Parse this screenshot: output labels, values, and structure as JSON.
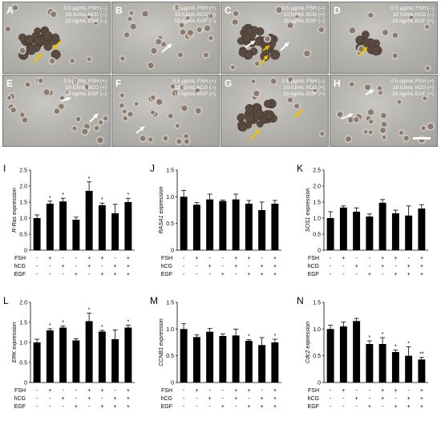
{
  "photo_panels": [
    {
      "letter": "A",
      "conditions": [
        "0.5 µg/mL FSH (–)",
        "10 IU/mL hCG (–)",
        "10 ng/mL EGF (–)"
      ],
      "cluster": "large"
    },
    {
      "letter": "B",
      "conditions": [
        "0.5 µg/mL FSH (+)",
        "10 IU/mL hCG (–)",
        "10 ng/mL EGF (–)"
      ],
      "cluster": "dispersed"
    },
    {
      "letter": "C",
      "conditions": [
        "0.5 µg/mL FSH (–)",
        "10 IU/mL hCG (+)",
        "10 ng/mL EGF (–)"
      ],
      "cluster": "large"
    },
    {
      "letter": "D",
      "conditions": [
        "0.5 µg/mL FSH (–)",
        "10 IU/mL hCG (–)",
        "10 ng/mL EGF (+)"
      ],
      "cluster": "small"
    },
    {
      "letter": "E",
      "conditions": [
        "0.5 µg/mL FSH (+)",
        "10 IU/mL hCG (+)",
        "10 ng/mL EGF (–)"
      ],
      "cluster": "dispersed"
    },
    {
      "letter": "F",
      "conditions": [
        "0.5 µg/mL FSH (+)",
        "10 IU/mL hCG (–)",
        "10 ng/mL EGF (+)"
      ],
      "cluster": "dispersed"
    },
    {
      "letter": "G",
      "conditions": [
        "0.5 µg/mL FSH (–)",
        "10 IU/mL hCG (+)",
        "10 ng/mL EGF (+)"
      ],
      "cluster": "large"
    },
    {
      "letter": "H",
      "conditions": [
        "0.5 µg/mL FSH (+)",
        "10 IU/mL hCG (+)",
        "10 ng/mL EGF (+)"
      ],
      "cluster": "dispersed"
    }
  ],
  "colors": {
    "arrow_yellow": "#f2c200",
    "arrow_white": "#ffffff",
    "bar": "#000000",
    "photo_bg": "#b6b4af",
    "oocyte": "#5a4a40"
  },
  "treatment_labels": [
    "FSH",
    "hCG",
    "EGF"
  ],
  "treatment_matrix": [
    [
      "-",
      "+",
      "-",
      "-",
      "+",
      "+",
      "-",
      "+"
    ],
    [
      "-",
      "-",
      "+",
      "-",
      "+",
      "-",
      "+",
      "+"
    ],
    [
      "-",
      "-",
      "-",
      "+",
      "-",
      "+",
      "+",
      "+"
    ]
  ],
  "chart_data": [
    {
      "letter": "I",
      "type": "bar",
      "ylabel": "R-Ras expression",
      "ylim": [
        0,
        2.5
      ],
      "yticks": [
        "0",
        "0.5",
        "1.0",
        "1.5",
        "2.0",
        "2.5"
      ],
      "values": [
        1.0,
        1.45,
        1.52,
        0.95,
        1.85,
        1.4,
        1.15,
        1.5
      ],
      "errors": [
        0.1,
        0.08,
        0.1,
        0.08,
        0.28,
        0.07,
        0.28,
        0.12
      ],
      "marks": [
        "",
        "*",
        "*",
        "",
        "*",
        "*",
        "",
        "*"
      ]
    },
    {
      "letter": "J",
      "type": "bar",
      "ylabel": "RASA1 expression",
      "ylim": [
        0,
        1.5
      ],
      "yticks": [
        "0",
        "0.5",
        "1.0",
        "1.5"
      ],
      "values": [
        1.0,
        0.85,
        0.95,
        0.92,
        0.95,
        0.87,
        0.75,
        0.87
      ],
      "errors": [
        0.12,
        0.04,
        0.1,
        0.02,
        0.1,
        0.06,
        0.15,
        0.06
      ],
      "marks": [
        "",
        "",
        "",
        "",
        "",
        "",
        "",
        ""
      ]
    },
    {
      "letter": "K",
      "type": "bar",
      "ylabel": "SOS1 expression",
      "ylim": [
        0,
        2.5
      ],
      "yticks": [
        "0",
        "0.5",
        "1.0",
        "1.5",
        "2.0",
        "2.5"
      ],
      "values": [
        1.0,
        1.33,
        1.2,
        1.05,
        1.48,
        1.15,
        1.08,
        1.3
      ],
      "errors": [
        0.2,
        0.05,
        0.12,
        0.08,
        0.1,
        0.1,
        0.3,
        0.12
      ],
      "marks": [
        "",
        "",
        "",
        "",
        "",
        "",
        "",
        ""
      ]
    },
    {
      "letter": "L",
      "type": "bar",
      "ylabel": "ERK expression",
      "ylim": [
        0,
        2.0
      ],
      "yticks": [
        "0",
        "0.5",
        "1.0",
        "1.5",
        "2.0"
      ],
      "values": [
        1.0,
        1.3,
        1.37,
        1.05,
        1.53,
        1.27,
        1.08,
        1.37
      ],
      "errors": [
        0.08,
        0.04,
        0.04,
        0.04,
        0.2,
        0.03,
        0.23,
        0.06
      ],
      "marks": [
        "",
        "*",
        "*",
        "",
        "*",
        "*",
        "",
        "*"
      ]
    },
    {
      "letter": "M",
      "type": "bar",
      "ylabel": "CCNB1 expression",
      "ylim": [
        0,
        1.5
      ],
      "yticks": [
        "0",
        "0.5",
        "1.0",
        "1.5"
      ],
      "values": [
        1.0,
        0.85,
        0.95,
        0.87,
        0.88,
        0.78,
        0.7,
        0.75
      ],
      "errors": [
        0.1,
        0.04,
        0.06,
        0.04,
        0.12,
        0.02,
        0.14,
        0.06
      ],
      "marks": [
        "",
        "",
        "",
        "",
        "",
        "*",
        "",
        "*"
      ]
    },
    {
      "letter": "N",
      "type": "bar",
      "ylabel": "Cdc2 expression",
      "ylim": [
        0,
        1.5
      ],
      "yticks": [
        "0",
        "0.5",
        "1.0",
        "1.5"
      ],
      "values": [
        1.0,
        1.05,
        1.15,
        0.72,
        0.72,
        0.57,
        0.5,
        0.43
      ],
      "errors": [
        0.07,
        0.08,
        0.05,
        0.06,
        0.12,
        0.04,
        0.17,
        0.04
      ],
      "marks": [
        "",
        "",
        "",
        "*",
        "*",
        "*",
        "*",
        "**"
      ]
    }
  ]
}
